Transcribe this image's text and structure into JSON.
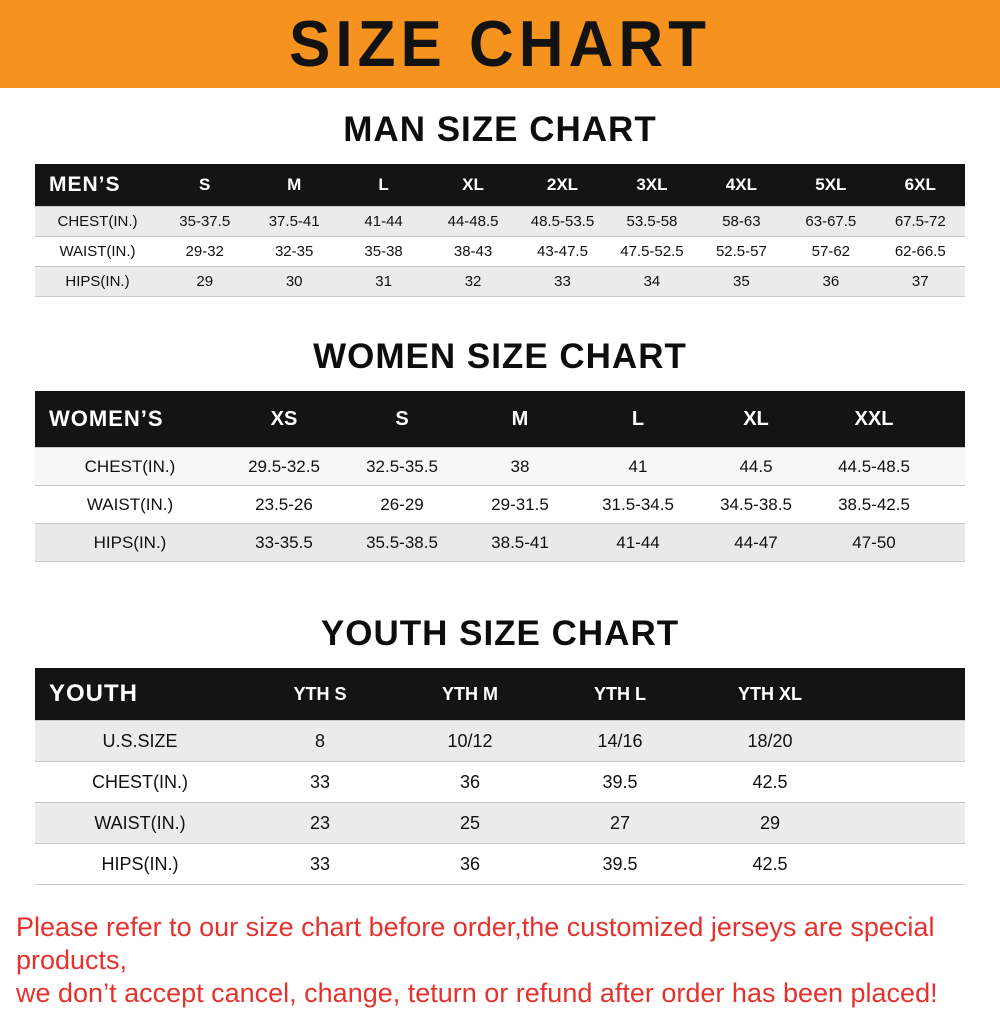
{
  "banner": {
    "title": "SIZE CHART"
  },
  "colors": {
    "banner_bg": "#F6921E",
    "table_header_bg": "#141414",
    "footer_text": "#E5322D",
    "row_stripe": "#EBEBEB"
  },
  "chart_data": [
    {
      "type": "table",
      "title": "MAN SIZE CHART",
      "header": [
        "MEN’S",
        "S",
        "M",
        "L",
        "XL",
        "2XL",
        "3XL",
        "4XL",
        "5XL",
        "6XL"
      ],
      "rows": [
        [
          "CHEST(IN.)",
          "35-37.5",
          "37.5-41",
          "41-44",
          "44-48.5",
          "48.5-53.5",
          "53.5-58",
          "58-63",
          "63-67.5",
          "67.5-72"
        ],
        [
          "WAIST(IN.)",
          "29-32",
          "32-35",
          "35-38",
          "38-43",
          "43-47.5",
          "47.5-52.5",
          "52.5-57",
          "57-62",
          "62-66.5"
        ],
        [
          "HIPS(IN.)",
          "29",
          "30",
          "31",
          "32",
          "33",
          "34",
          "35",
          "36",
          "37"
        ]
      ]
    },
    {
      "type": "table",
      "title": "WOMEN SIZE CHART",
      "header": [
        "WOMEN’S",
        "XS",
        "S",
        "M",
        "L",
        "XL",
        "XXL"
      ],
      "rows": [
        [
          "CHEST(IN.)",
          "29.5-32.5",
          "32.5-35.5",
          "38",
          "41",
          "44.5",
          "44.5-48.5"
        ],
        [
          "WAIST(IN.)",
          "23.5-26",
          "26-29",
          "29-31.5",
          "31.5-34.5",
          "34.5-38.5",
          "38.5-42.5"
        ],
        [
          "HIPS(IN.)",
          "33-35.5",
          "35.5-38.5",
          "38.5-41",
          "41-44",
          "44-47",
          "47-50"
        ]
      ]
    },
    {
      "type": "table",
      "title": "YOUTH SIZE CHART",
      "header": [
        "YOUTH",
        "YTH S",
        "YTH M",
        "YTH L",
        "YTH XL"
      ],
      "rows": [
        [
          "U.S.SIZE",
          "8",
          "10/12",
          "14/16",
          "18/20"
        ],
        [
          "CHEST(IN.)",
          "33",
          "36",
          "39.5",
          "42.5"
        ],
        [
          "WAIST(IN.)",
          "23",
          "25",
          "27",
          "29"
        ],
        [
          "HIPS(IN.)",
          "33",
          "36",
          "39.5",
          "42.5"
        ]
      ]
    }
  ],
  "footer": {
    "line1": "Please refer to our size chart before order,the customized jerseys are special products,",
    "line2": "we don’t accept cancel, change, teturn or refund after order has been placed!"
  }
}
